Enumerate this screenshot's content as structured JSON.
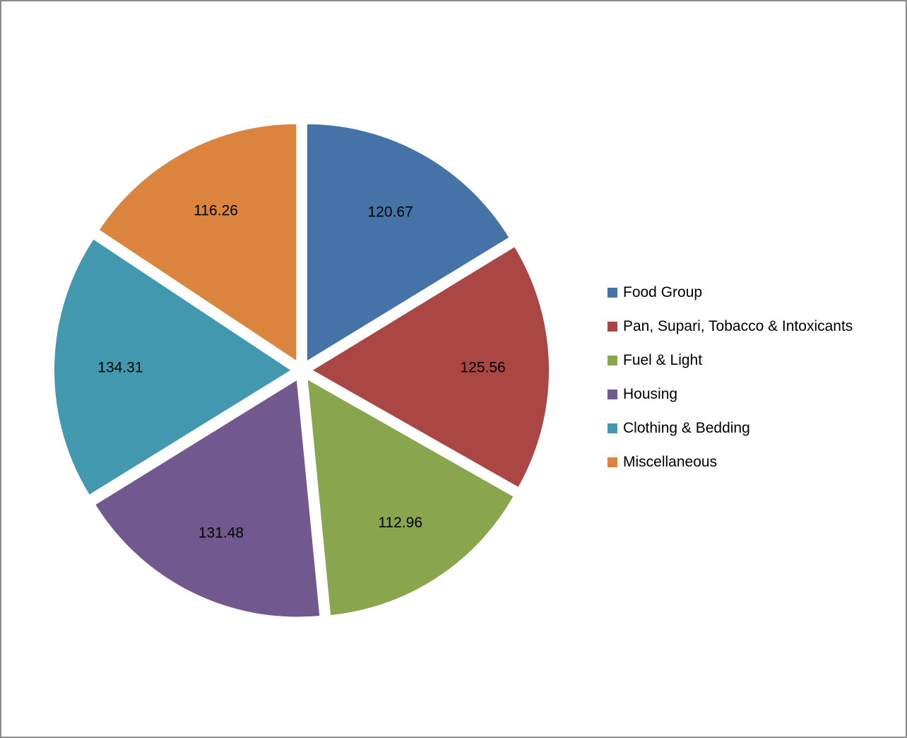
{
  "chart_data": {
    "type": "pie",
    "title": "",
    "categories": [
      "Food Group",
      "Pan, Supari, Tobacco & Intoxicants",
      "Fuel & Light",
      "Housing",
      "Clothing & Bedding",
      "Miscellaneous"
    ],
    "values": [
      120.67,
      125.56,
      112.96,
      131.48,
      134.31,
      116.26
    ],
    "value_labels": [
      "120.67",
      "125.56",
      "112.96",
      "131.48",
      "134.31",
      "116.26"
    ],
    "colors": [
      "#4572A7",
      "#AA4643",
      "#89A54E",
      "#71588F",
      "#4198AF",
      "#DB843D"
    ],
    "exploded": true,
    "start_angle": "12 o'clock, clockwise",
    "legend_position": "right"
  }
}
